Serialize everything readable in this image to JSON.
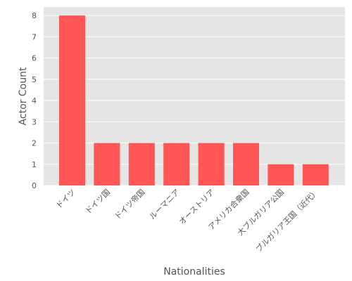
{
  "chart_data": {
    "type": "bar",
    "title": "",
    "xlabel": "Nationalities",
    "ylabel": "Actor Count",
    "categories": [
      "ドイツ",
      "ドイツ国",
      "ドイツ帝国",
      "ルーマニア",
      "オーストリア",
      "アメリカ合衆国",
      "大ブルガリア公国",
      "ブルガリア王国（近代）"
    ],
    "values": [
      8,
      2,
      2,
      2,
      2,
      2,
      1,
      1
    ],
    "ylim": [
      0,
      8.4
    ],
    "yticks": [
      0,
      1,
      2,
      3,
      4,
      5,
      6,
      7,
      8
    ],
    "grid": true,
    "bar_color": "#ff5555",
    "background_color": "#e5e5e5",
    "grid_color": "#ffffff"
  }
}
